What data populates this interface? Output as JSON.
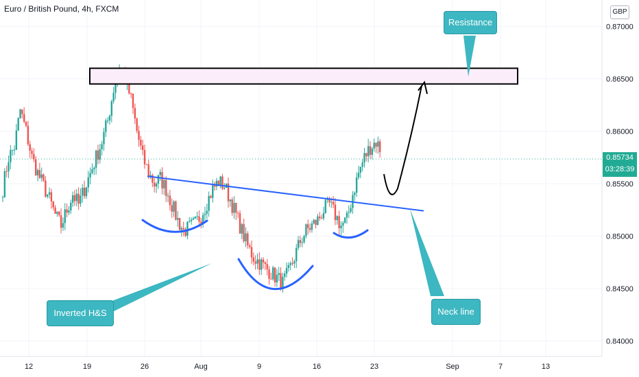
{
  "header": {
    "title": "Euro / British Pound, 4h, FXCM",
    "currency": "GBP"
  },
  "price_tag": {
    "price": "0.85734",
    "countdown": "03:28:39"
  },
  "annotations": {
    "resistance": "Resistance",
    "inverted_hs": "Inverted H&S",
    "neck_line": "Neck line"
  },
  "colors": {
    "up": "#26a69a",
    "down": "#ef5350",
    "neckline": "#2962ff",
    "callout": "#3db7c1",
    "price_tag": "#22ab94"
  },
  "chart_data": {
    "type": "candlestick",
    "title": "Euro / British Pound, 4h, FXCM",
    "y_ticks": [
      "0.87000",
      "0.86500",
      "0.86000",
      "0.85500",
      "0.85000",
      "0.84500",
      "0.84000"
    ],
    "ylim": [
      0.8395,
      0.8712
    ],
    "x_ticks": [
      "12",
      "19",
      "26",
      "Aug",
      "9",
      "16",
      "23",
      "Sep",
      "7",
      "13"
    ],
    "current_price": 0.85734,
    "resistance_zone": [
      0.8645,
      0.866
    ],
    "neckline": [
      [
        0.8557
      ],
      [
        0.8524
      ]
    ],
    "price_path": [
      0.8545,
      0.8575,
      0.8585,
      0.862,
      0.86,
      0.8575,
      0.856,
      0.8548,
      0.8535,
      0.852,
      0.851,
      0.8525,
      0.854,
      0.853,
      0.8545,
      0.856,
      0.8575,
      0.859,
      0.861,
      0.864,
      0.866,
      0.865,
      0.863,
      0.86,
      0.8575,
      0.856,
      0.855,
      0.8555,
      0.8545,
      0.853,
      0.8515,
      0.8505,
      0.8508,
      0.8512,
      0.852,
      0.8532,
      0.8545,
      0.8552,
      0.8548,
      0.8535,
      0.852,
      0.8505,
      0.849,
      0.848,
      0.8475,
      0.847,
      0.8465,
      0.846,
      0.8455,
      0.8465,
      0.848,
      0.8495,
      0.8505,
      0.851,
      0.8515,
      0.8525,
      0.853,
      0.852,
      0.851,
      0.8515,
      0.854,
      0.856,
      0.8575,
      0.8585,
      0.859,
      0.858
    ]
  }
}
